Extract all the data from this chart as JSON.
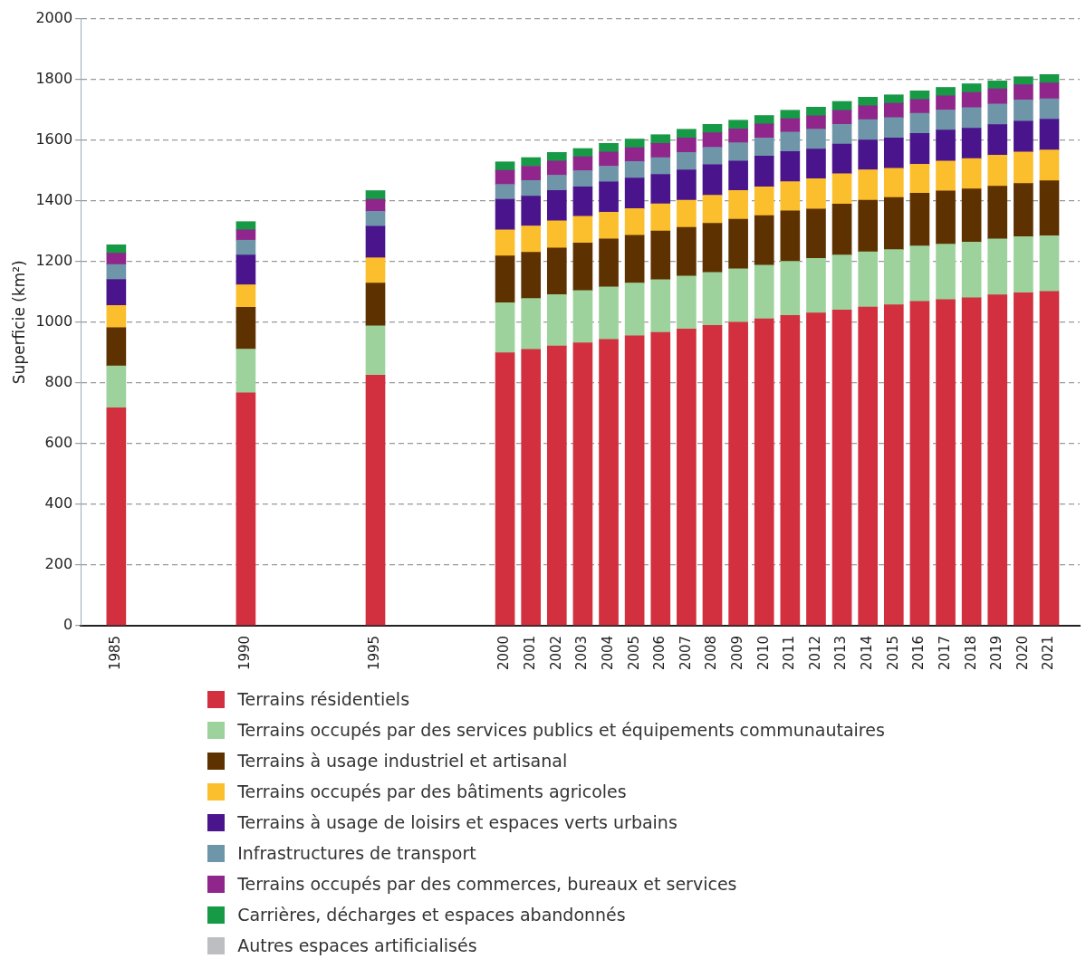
{
  "chart_data": {
    "type": "bar",
    "stacked": true,
    "ylabel": "Superficie (km²)",
    "x": [
      1985,
      1990,
      1995,
      2000,
      2001,
      2002,
      2003,
      2004,
      2005,
      2006,
      2007,
      2008,
      2009,
      2010,
      2011,
      2012,
      2013,
      2014,
      2015,
      2016,
      2017,
      2018,
      2019,
      2020,
      2021
    ],
    "xlim": [
      1984.4,
      2021.4
    ],
    "xticks": [
      1985,
      1990,
      1995,
      2000,
      2001,
      2002,
      2003,
      2004,
      2005,
      2006,
      2007,
      2008,
      2009,
      2010,
      2011,
      2012,
      2013,
      2014,
      2015,
      2016,
      2017,
      2018,
      2019,
      2020,
      2021
    ],
    "ylim": [
      0,
      2000
    ],
    "yticks": [
      0,
      200,
      400,
      600,
      800,
      1000,
      1200,
      1400,
      1600,
      1800,
      2000
    ],
    "grid": "y",
    "legend": "bottom",
    "series": [
      {
        "name": "Terrains résidentiels",
        "color": "#d22f3f",
        "values": [
          718,
          767,
          825,
          899,
          910,
          921,
          932,
          943,
          955,
          966,
          977,
          989,
          1000,
          1011,
          1022,
          1030,
          1040,
          1050,
          1057,
          1068,
          1074,
          1080,
          1090,
          1097,
          1101
        ]
      },
      {
        "name": "Terrains occupés par des services publics et équipements communautaires",
        "color": "#9dd29d",
        "values": [
          138,
          144,
          163,
          165,
          168,
          170,
          172,
          173,
          174,
          174,
          175,
          175,
          176,
          177,
          178,
          180,
          181,
          182,
          182,
          183,
          183,
          184,
          184,
          185,
          184
        ]
      },
      {
        "name": "Terrains à usage industriel et artisanal",
        "color": "#5e3100",
        "values": [
          126,
          138,
          141,
          154,
          152,
          153,
          157,
          158,
          157,
          160,
          160,
          162,
          163,
          163,
          167,
          163,
          168,
          170,
          172,
          174,
          175,
          175,
          174,
          175,
          181
        ]
      },
      {
        "name": "Terrains occupés par des bâtiments agricoles",
        "color": "#fbbf2d",
        "values": [
          73,
          74,
          83,
          86,
          87,
          90,
          88,
          88,
          88,
          90,
          90,
          92,
          95,
          95,
          96,
          100,
          100,
          100,
          96,
          95,
          99,
          100,
          102,
          104,
          101
        ]
      },
      {
        "name": "Terrains à usage de loisirs et espaces verts urbains",
        "color": "#4a148c",
        "values": [
          86,
          98,
          104,
          101,
          98,
          100,
          97,
          100,
          101,
          97,
          100,
          101,
          97,
          101,
          99,
          97,
          98,
          98,
          100,
          102,
          102,
          100,
          101,
          101,
          102
        ]
      },
      {
        "name": "Infrastructures de transport",
        "color": "#6f96a8",
        "values": [
          49,
          49,
          49,
          49,
          52,
          50,
          53,
          52,
          54,
          55,
          57,
          57,
          60,
          60,
          64,
          66,
          65,
          67,
          67,
          66,
          66,
          68,
          68,
          70,
          67
        ]
      },
      {
        "name": "Terrains occupés par des commerces, bureaux et services",
        "color": "#90258c",
        "values": [
          37,
          34,
          40,
          46,
          47,
          47,
          46,
          47,
          46,
          47,
          48,
          48,
          46,
          46,
          44,
          44,
          46,
          46,
          47,
          46,
          47,
          50,
          50,
          50,
          52
        ]
      },
      {
        "name": "Carrières, décharges et espaces abandonnés",
        "color": "#179a45",
        "values": [
          28,
          27,
          28,
          28,
          28,
          28,
          27,
          28,
          28,
          28,
          28,
          28,
          28,
          28,
          28,
          28,
          29,
          28,
          28,
          28,
          27,
          28,
          26,
          26,
          28
        ]
      },
      {
        "name": "Autres espaces artificialisés",
        "color": "#bdbec2",
        "values": [
          0,
          0,
          0,
          0,
          0,
          0,
          0,
          0,
          0,
          0,
          0,
          0,
          0,
          0,
          0,
          0,
          0,
          0,
          0,
          0,
          0,
          0,
          0,
          0,
          0
        ]
      }
    ]
  }
}
